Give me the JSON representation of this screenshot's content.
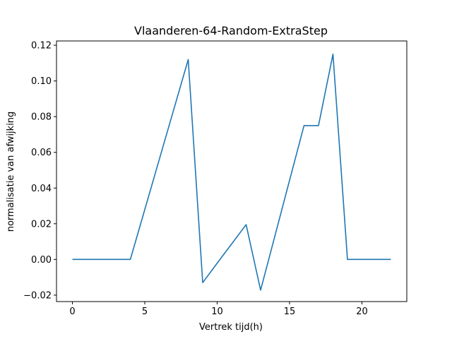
{
  "chart_data": {
    "type": "line",
    "title": "Vlaanderen-64-Random-ExtraStep",
    "xlabel": "Vertrek tijd(h)",
    "ylabel": "normalisatie van afwijking",
    "xlim": [
      -1.1,
      23.1
    ],
    "ylim": [
      -0.0236,
      0.1224
    ],
    "xticks": [
      0,
      5,
      10,
      15,
      20
    ],
    "yticks": [
      -0.02,
      0.0,
      0.02,
      0.04,
      0.06,
      0.08,
      0.1,
      0.12
    ],
    "ytick_labels": [
      "−0.02",
      "0.00",
      "0.02",
      "0.04",
      "0.06",
      "0.08",
      "0.10",
      "0.12"
    ],
    "grid": false,
    "series": [
      {
        "name": "afwijking",
        "color": "#1f77b4",
        "x": [
          0,
          1,
          2,
          3,
          4,
          5,
          6,
          7,
          8,
          9,
          10,
          11,
          12,
          13,
          14,
          15,
          16,
          17,
          18,
          19,
          20,
          21,
          22
        ],
        "y": [
          0.0,
          0.0,
          0.0,
          0.0,
          0.0,
          0.028,
          0.056,
          0.084,
          0.112,
          -0.013,
          -0.0021,
          0.0087,
          0.0195,
          -0.0172,
          0.0135,
          0.0443,
          0.075,
          0.075,
          0.115,
          0.0,
          0.0,
          0.0,
          0.0
        ]
      }
    ]
  }
}
